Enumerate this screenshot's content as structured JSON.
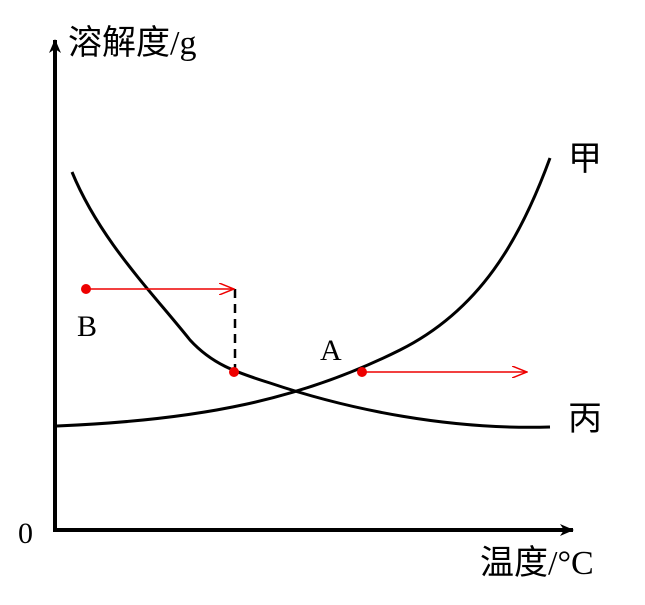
{
  "axes": {
    "y_label": "溶解度/g",
    "x_label": "温度/°C",
    "origin": "0"
  },
  "curves": [
    {
      "label": "甲"
    },
    {
      "label": "丙"
    }
  ],
  "points": [
    {
      "label": "A"
    },
    {
      "label": "B"
    }
  ]
}
